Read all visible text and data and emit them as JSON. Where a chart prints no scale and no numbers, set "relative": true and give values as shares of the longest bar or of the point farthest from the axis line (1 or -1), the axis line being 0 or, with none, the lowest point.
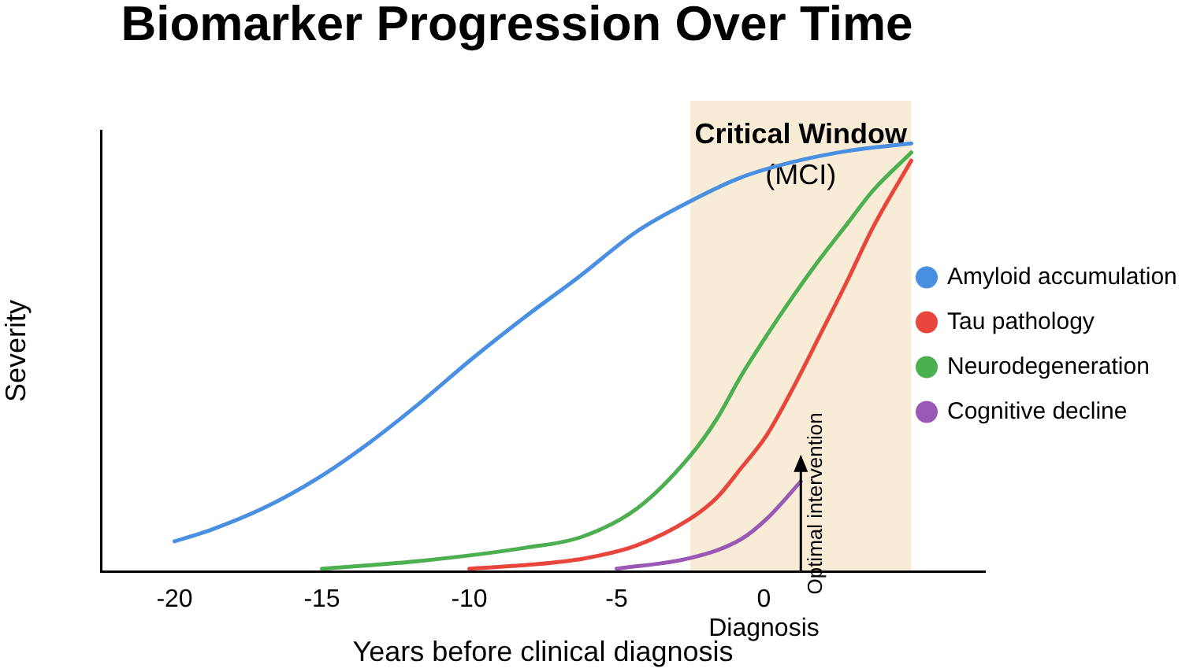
{
  "chart_data": {
    "type": "line",
    "title": "Biomarker Progression Over Time",
    "xlabel": "Years before clinical diagnosis",
    "ylabel": "Severity",
    "relative": true,
    "xlim": [
      -22.5,
      7.5
    ],
    "xticks": [
      -20,
      -15,
      -10,
      -5,
      {
        "value": 0,
        "label": "0\nDiagnosis"
      }
    ],
    "grid": false,
    "legend": "right",
    "marker": "none",
    "line_style": "solid",
    "series": [
      {
        "name": "Amyloid accumulation",
        "color": "#4a90e2",
        "x": [
          -20,
          -18.8,
          -17,
          -15.2,
          -13.4,
          -11.7,
          -9.9,
          -8.1,
          -6.3,
          -4.3,
          -2.5,
          -0.8,
          1,
          2.8,
          5
        ],
        "values": [
          0.07,
          0.096,
          0.147,
          0.215,
          0.3,
          0.392,
          0.497,
          0.595,
          0.687,
          0.795,
          0.865,
          0.92,
          0.957,
          0.982,
          1
        ]
      },
      {
        "name": "Tau pathology",
        "color": "#e8453c",
        "x": [
          -10,
          -8,
          -6.1,
          -4.3,
          -2.5,
          -1.6,
          -0.8,
          0.1,
          1,
          1.9,
          2.8,
          3.7,
          5
        ],
        "values": [
          0.006,
          0.015,
          0.03,
          0.061,
          0.123,
          0.172,
          0.239,
          0.319,
          0.43,
          0.552,
          0.675,
          0.804,
          0.96
        ]
      },
      {
        "name": "Neurodegeneration",
        "color": "#4caf50",
        "x": [
          -15,
          -11.7,
          -8.1,
          -6.2,
          -4.3,
          -2.5,
          -1.6,
          -0.8,
          0.1,
          1,
          1.9,
          2.8,
          3.7,
          5
        ],
        "values": [
          0.006,
          0.024,
          0.055,
          0.08,
          0.147,
          0.27,
          0.356,
          0.454,
          0.552,
          0.644,
          0.73,
          0.81,
          0.89,
          0.979
        ]
      },
      {
        "name": "Cognitive decline",
        "color": "#9b59b6",
        "x": [
          -5,
          -2.5,
          -0.8,
          0.1,
          1.25
        ],
        "values": [
          0.006,
          0.031,
          0.074,
          0.123,
          0.21
        ]
      }
    ],
    "bands": [
      {
        "axis": "x",
        "from": -2.5,
        "to": 5,
        "label": "Critical Window\n(MCI)",
        "color": "#f8ecd6"
      }
    ],
    "annotations": [
      {
        "text": "Optimal intervention",
        "x": 1.25,
        "y": 0.21
      }
    ]
  }
}
